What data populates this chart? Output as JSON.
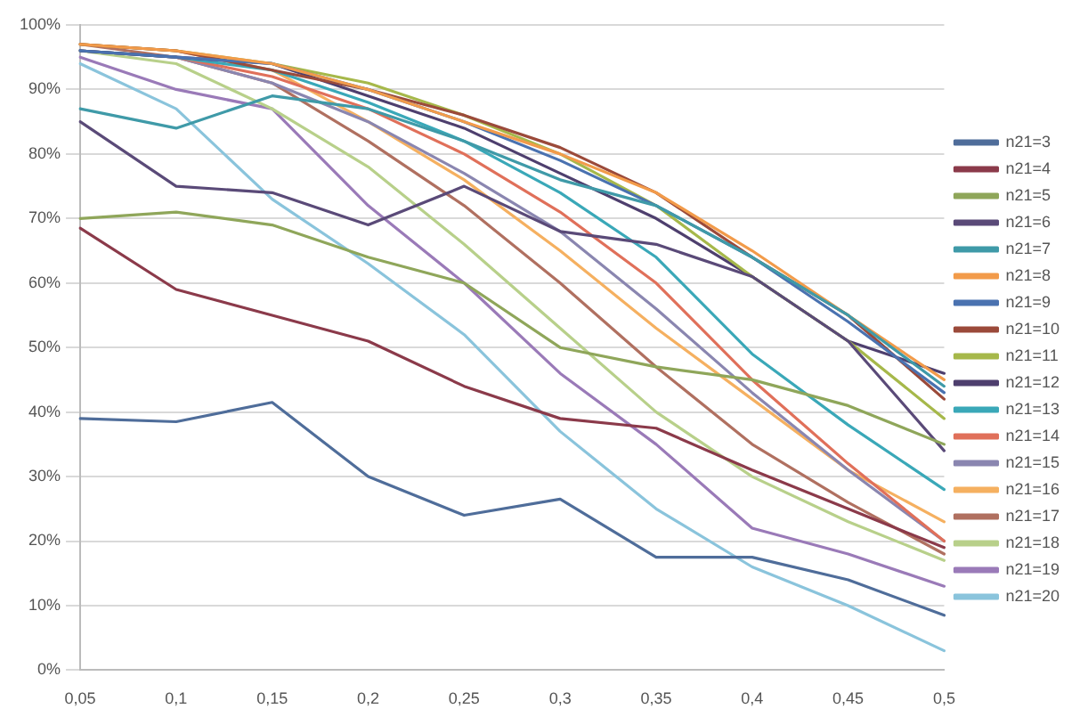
{
  "chart_data": {
    "type": "line",
    "categories": [
      "0,05",
      "0,1",
      "0,15",
      "0,2",
      "0,25",
      "0,3",
      "0,35",
      "0,4",
      "0,45",
      "0,5"
    ],
    "ylim": [
      0,
      100
    ],
    "yticks": [
      {
        "value": 0,
        "label": "0%"
      },
      {
        "value": 10,
        "label": "10%"
      },
      {
        "value": 20,
        "label": "20%"
      },
      {
        "value": 30,
        "label": "30%"
      },
      {
        "value": 40,
        "label": "40%"
      },
      {
        "value": 50,
        "label": "50%"
      },
      {
        "value": 60,
        "label": "60%"
      },
      {
        "value": 70,
        "label": "70%"
      },
      {
        "value": 80,
        "label": "80%"
      },
      {
        "value": 90,
        "label": "90%"
      },
      {
        "value": 100,
        "label": "100%"
      }
    ],
    "grid": "y",
    "legend": "right",
    "marker": "none",
    "line_style": "solid",
    "series": [
      {
        "name": "n21=3",
        "color": "#4f6d9a",
        "values": [
          39,
          38.5,
          41.5,
          30,
          24,
          26.5,
          17.5,
          17.5,
          14,
          8.5
        ]
      },
      {
        "name": "n21=4",
        "color": "#8b3a4a",
        "values": [
          68.5,
          59,
          55,
          51,
          44,
          39,
          37.5,
          31,
          25,
          19
        ]
      },
      {
        "name": "n21=5",
        "color": "#8fa65a",
        "values": [
          70,
          71,
          69,
          64,
          60,
          50,
          47,
          45,
          41,
          35
        ]
      },
      {
        "name": "n21=6",
        "color": "#5a4a78",
        "values": [
          85,
          75,
          74,
          69,
          75,
          68,
          66,
          61,
          51,
          34
        ]
      },
      {
        "name": "n21=7",
        "color": "#3f9aa8",
        "values": [
          87,
          84,
          89,
          87,
          82,
          76,
          72,
          64,
          55,
          44
        ]
      },
      {
        "name": "n21=8",
        "color": "#f29b4a",
        "values": [
          97,
          96,
          94,
          90,
          85,
          80,
          74,
          65,
          55,
          45
        ]
      },
      {
        "name": "n21=9",
        "color": "#4a72b0",
        "values": [
          96,
          95,
          94,
          90,
          85,
          79,
          72,
          64,
          54,
          43
        ]
      },
      {
        "name": "n21=10",
        "color": "#9b4a3a",
        "values": [
          97,
          96,
          93,
          90,
          86,
          81,
          74,
          64,
          55,
          42
        ]
      },
      {
        "name": "n21=11",
        "color": "#a6b84a",
        "values": [
          97,
          96,
          94,
          91,
          86,
          80,
          72,
          61,
          51,
          39
        ]
      },
      {
        "name": "n21=12",
        "color": "#4e3f6e",
        "values": [
          96,
          95,
          94,
          89,
          84,
          77,
          70,
          61,
          51,
          46
        ]
      },
      {
        "name": "n21=13",
        "color": "#3aa8b8",
        "values": [
          96,
          95,
          93,
          88,
          82,
          74,
          64,
          49,
          38,
          28
        ]
      },
      {
        "name": "n21=14",
        "color": "#e0705a",
        "values": [
          96,
          95,
          92,
          87,
          80,
          71,
          60,
          45,
          32,
          20
        ]
      },
      {
        "name": "n21=15",
        "color": "#8a86b0",
        "values": [
          96,
          95,
          91,
          85,
          77,
          68,
          56,
          43,
          31,
          20
        ]
      },
      {
        "name": "n21=16",
        "color": "#f5b060",
        "values": [
          97,
          96,
          93,
          85,
          76,
          65,
          53,
          42,
          31,
          23
        ]
      },
      {
        "name": "n21=17",
        "color": "#b07060",
        "values": [
          97,
          95,
          91,
          82,
          72,
          60,
          47,
          35,
          26,
          18
        ]
      },
      {
        "name": "n21=18",
        "color": "#b8d08a",
        "values": [
          96,
          94,
          87,
          78,
          66,
          53,
          40,
          30,
          23,
          17
        ]
      },
      {
        "name": "n21=19",
        "color": "#9a7ab8",
        "values": [
          95,
          90,
          87,
          72,
          60,
          46,
          35,
          22,
          18,
          13
        ]
      },
      {
        "name": "n21=20",
        "color": "#8ac4dc",
        "values": [
          94,
          87,
          73,
          63,
          52,
          37,
          25,
          16,
          10,
          3
        ]
      }
    ]
  }
}
